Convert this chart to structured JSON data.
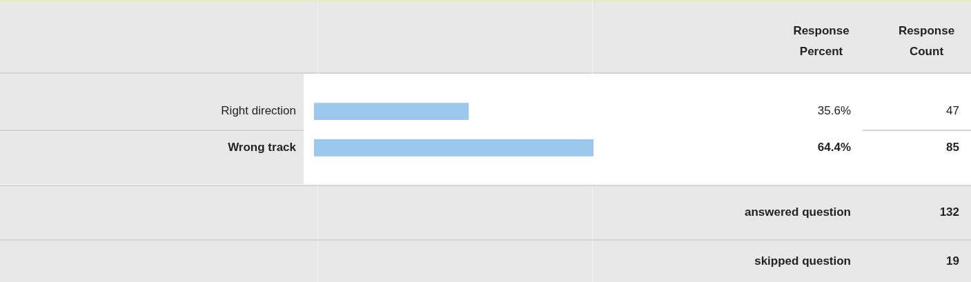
{
  "chart_data": {
    "type": "bar",
    "orientation": "horizontal",
    "categories": [
      "Right direction",
      "Wrong track"
    ],
    "values": [
      35.6,
      64.4
    ],
    "color": "#9cc8ee",
    "value_labels": [
      "35.6%",
      "64.4%"
    ],
    "annotations": [
      "Response Percent",
      "Response Count",
      "answered question",
      "132",
      "skipped question",
      "19",
      "47",
      "85"
    ]
  }
}
